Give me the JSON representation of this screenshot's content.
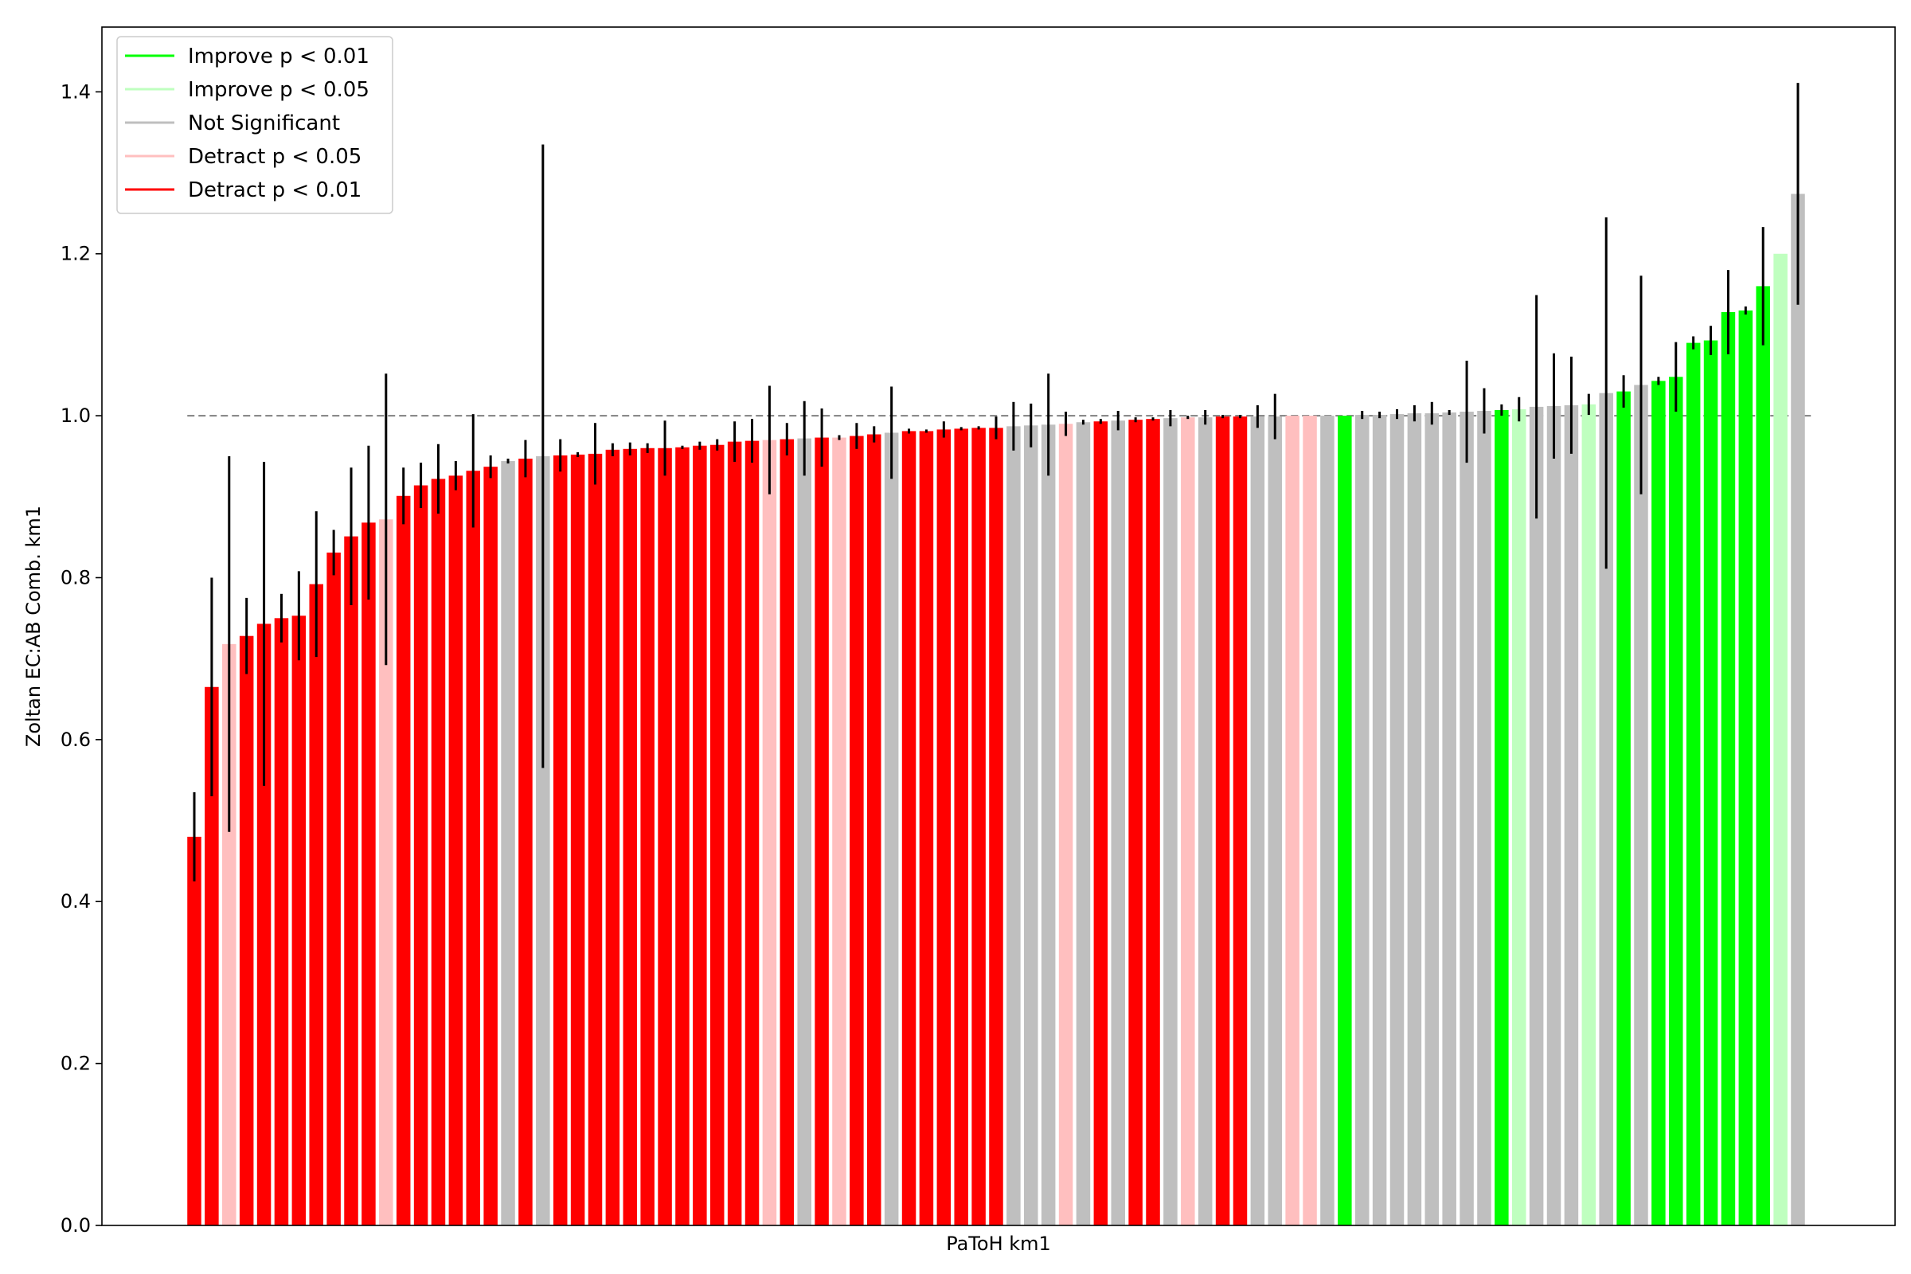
{
  "chart_data": {
    "type": "bar",
    "title": "",
    "xlabel": "PaToH km1",
    "ylabel": "Zoltan EC:AB Comb. km1",
    "ylim": [
      0.0,
      1.48
    ],
    "yticks": [
      0.0,
      0.2,
      0.4,
      0.6,
      0.8,
      1.0,
      1.2,
      1.4
    ],
    "ytick_labels": [
      "0.0",
      "0.2",
      "0.4",
      "0.6",
      "0.8",
      "1.0",
      "1.2",
      "1.4"
    ],
    "reference_line": 1.0,
    "grid": false,
    "legend_position": "top-left",
    "legend": [
      {
        "label": "Improve p < 0.01",
        "category": "imp01"
      },
      {
        "label": "Improve p < 0.05",
        "category": "imp05"
      },
      {
        "label": "Not Significant",
        "category": "ns"
      },
      {
        "label": "Detract p < 0.05",
        "category": "det05"
      },
      {
        "label": "Detract p < 0.01",
        "category": "det01"
      }
    ],
    "colors": {
      "imp01": "#00ff00",
      "imp05": "#bfffbf",
      "ns": "#bfbfbf",
      "det05": "#ffbfbf",
      "det01": "#ff0000",
      "error": "#000000",
      "refline": "#808080"
    },
    "bars": [
      {
        "v": 0.48,
        "e": 0.055,
        "c": "det01"
      },
      {
        "v": 0.665,
        "e": 0.135,
        "c": "det01"
      },
      {
        "v": 0.718,
        "e": 0.232,
        "c": "det05"
      },
      {
        "v": 0.728,
        "e": 0.047,
        "c": "det01"
      },
      {
        "v": 0.743,
        "e": 0.2,
        "c": "det01"
      },
      {
        "v": 0.75,
        "e": 0.03,
        "c": "det01"
      },
      {
        "v": 0.753,
        "e": 0.055,
        "c": "det01"
      },
      {
        "v": 0.792,
        "e": 0.09,
        "c": "det01"
      },
      {
        "v": 0.831,
        "e": 0.028,
        "c": "det01"
      },
      {
        "v": 0.851,
        "e": 0.085,
        "c": "det01"
      },
      {
        "v": 0.868,
        "e": 0.095,
        "c": "det01"
      },
      {
        "v": 0.872,
        "e": 0.18,
        "c": "det05"
      },
      {
        "v": 0.901,
        "e": 0.035,
        "c": "det01"
      },
      {
        "v": 0.914,
        "e": 0.028,
        "c": "det01"
      },
      {
        "v": 0.922,
        "e": 0.043,
        "c": "det01"
      },
      {
        "v": 0.926,
        "e": 0.018,
        "c": "det01"
      },
      {
        "v": 0.932,
        "e": 0.07,
        "c": "det01"
      },
      {
        "v": 0.937,
        "e": 0.014,
        "c": "det01"
      },
      {
        "v": 0.944,
        "e": 0.003,
        "c": "ns"
      },
      {
        "v": 0.947,
        "e": 0.023,
        "c": "det01"
      },
      {
        "v": 0.95,
        "e": 0.385,
        "c": "ns"
      },
      {
        "v": 0.951,
        "e": 0.02,
        "c": "det01"
      },
      {
        "v": 0.952,
        "e": 0.003,
        "c": "det01"
      },
      {
        "v": 0.953,
        "e": 0.038,
        "c": "det01"
      },
      {
        "v": 0.958,
        "e": 0.008,
        "c": "det01"
      },
      {
        "v": 0.959,
        "e": 0.008,
        "c": "det01"
      },
      {
        "v": 0.96,
        "e": 0.006,
        "c": "det01"
      },
      {
        "v": 0.96,
        "e": 0.034,
        "c": "det01"
      },
      {
        "v": 0.961,
        "e": 0.002,
        "c": "det01"
      },
      {
        "v": 0.963,
        "e": 0.005,
        "c": "det01"
      },
      {
        "v": 0.964,
        "e": 0.007,
        "c": "det01"
      },
      {
        "v": 0.968,
        "e": 0.025,
        "c": "det01"
      },
      {
        "v": 0.969,
        "e": 0.027,
        "c": "det01"
      },
      {
        "v": 0.97,
        "e": 0.067,
        "c": "det05"
      },
      {
        "v": 0.971,
        "e": 0.02,
        "c": "det01"
      },
      {
        "v": 0.972,
        "e": 0.046,
        "c": "ns"
      },
      {
        "v": 0.973,
        "e": 0.036,
        "c": "det01"
      },
      {
        "v": 0.973,
        "e": 0.003,
        "c": "det05"
      },
      {
        "v": 0.975,
        "e": 0.016,
        "c": "det01"
      },
      {
        "v": 0.977,
        "e": 0.01,
        "c": "det01"
      },
      {
        "v": 0.979,
        "e": 0.057,
        "c": "ns"
      },
      {
        "v": 0.981,
        "e": 0.003,
        "c": "det01"
      },
      {
        "v": 0.981,
        "e": 0.002,
        "c": "det01"
      },
      {
        "v": 0.983,
        "e": 0.01,
        "c": "det01"
      },
      {
        "v": 0.984,
        "e": 0.002,
        "c": "det01"
      },
      {
        "v": 0.985,
        "e": 0.002,
        "c": "det01"
      },
      {
        "v": 0.985,
        "e": 0.014,
        "c": "det01"
      },
      {
        "v": 0.987,
        "e": 0.03,
        "c": "ns"
      },
      {
        "v": 0.988,
        "e": 0.027,
        "c": "ns"
      },
      {
        "v": 0.989,
        "e": 0.063,
        "c": "ns"
      },
      {
        "v": 0.99,
        "e": 0.015,
        "c": "det05"
      },
      {
        "v": 0.992,
        "e": 0.003,
        "c": "ns"
      },
      {
        "v": 0.993,
        "e": 0.003,
        "c": "det01"
      },
      {
        "v": 0.994,
        "e": 0.012,
        "c": "ns"
      },
      {
        "v": 0.995,
        "e": 0.003,
        "c": "det01"
      },
      {
        "v": 0.996,
        "e": 0.002,
        "c": "det01"
      },
      {
        "v": 0.997,
        "e": 0.01,
        "c": "ns"
      },
      {
        "v": 0.998,
        "e": 0.002,
        "c": "det05"
      },
      {
        "v": 0.998,
        "e": 0.009,
        "c": "ns"
      },
      {
        "v": 0.999,
        "e": 0.002,
        "c": "det01"
      },
      {
        "v": 0.999,
        "e": 0.002,
        "c": "det01"
      },
      {
        "v": 0.999,
        "e": 0.014,
        "c": "ns"
      },
      {
        "v": 0.999,
        "e": 0.028,
        "c": "ns"
      },
      {
        "v": 1.0,
        "e": 0.0,
        "c": "det05"
      },
      {
        "v": 1.0,
        "e": 0.0,
        "c": "det05"
      },
      {
        "v": 1.0,
        "e": 0.0,
        "c": "ns"
      },
      {
        "v": 1.0,
        "e": 0.0,
        "c": "imp01"
      },
      {
        "v": 1.001,
        "e": 0.005,
        "c": "ns"
      },
      {
        "v": 1.001,
        "e": 0.004,
        "c": "ns"
      },
      {
        "v": 1.002,
        "e": 0.006,
        "c": "ns"
      },
      {
        "v": 1.003,
        "e": 0.01,
        "c": "ns"
      },
      {
        "v": 1.003,
        "e": 0.014,
        "c": "ns"
      },
      {
        "v": 1.004,
        "e": 0.003,
        "c": "ns"
      },
      {
        "v": 1.005,
        "e": 0.063,
        "c": "ns"
      },
      {
        "v": 1.006,
        "e": 0.028,
        "c": "ns"
      },
      {
        "v": 1.007,
        "e": 0.007,
        "c": "imp01"
      },
      {
        "v": 1.008,
        "e": 0.015,
        "c": "imp05"
      },
      {
        "v": 1.011,
        "e": 0.138,
        "c": "ns"
      },
      {
        "v": 1.012,
        "e": 0.065,
        "c": "ns"
      },
      {
        "v": 1.013,
        "e": 0.06,
        "c": "ns"
      },
      {
        "v": 1.014,
        "e": 0.013,
        "c": "imp05"
      },
      {
        "v": 1.028,
        "e": 0.217,
        "c": "ns"
      },
      {
        "v": 1.03,
        "e": 0.02,
        "c": "imp01"
      },
      {
        "v": 1.038,
        "e": 0.135,
        "c": "ns"
      },
      {
        "v": 1.043,
        "e": 0.005,
        "c": "imp01"
      },
      {
        "v": 1.048,
        "e": 0.043,
        "c": "imp01"
      },
      {
        "v": 1.09,
        "e": 0.008,
        "c": "imp01"
      },
      {
        "v": 1.093,
        "e": 0.018,
        "c": "imp01"
      },
      {
        "v": 1.128,
        "e": 0.052,
        "c": "imp01"
      },
      {
        "v": 1.13,
        "e": 0.005,
        "c": "imp01"
      },
      {
        "v": 1.16,
        "e": 0.073,
        "c": "imp01"
      },
      {
        "v": 1.2,
        "e": 0.0,
        "c": "imp05"
      },
      {
        "v": 1.274,
        "e": 0.137,
        "c": "ns"
      }
    ]
  }
}
